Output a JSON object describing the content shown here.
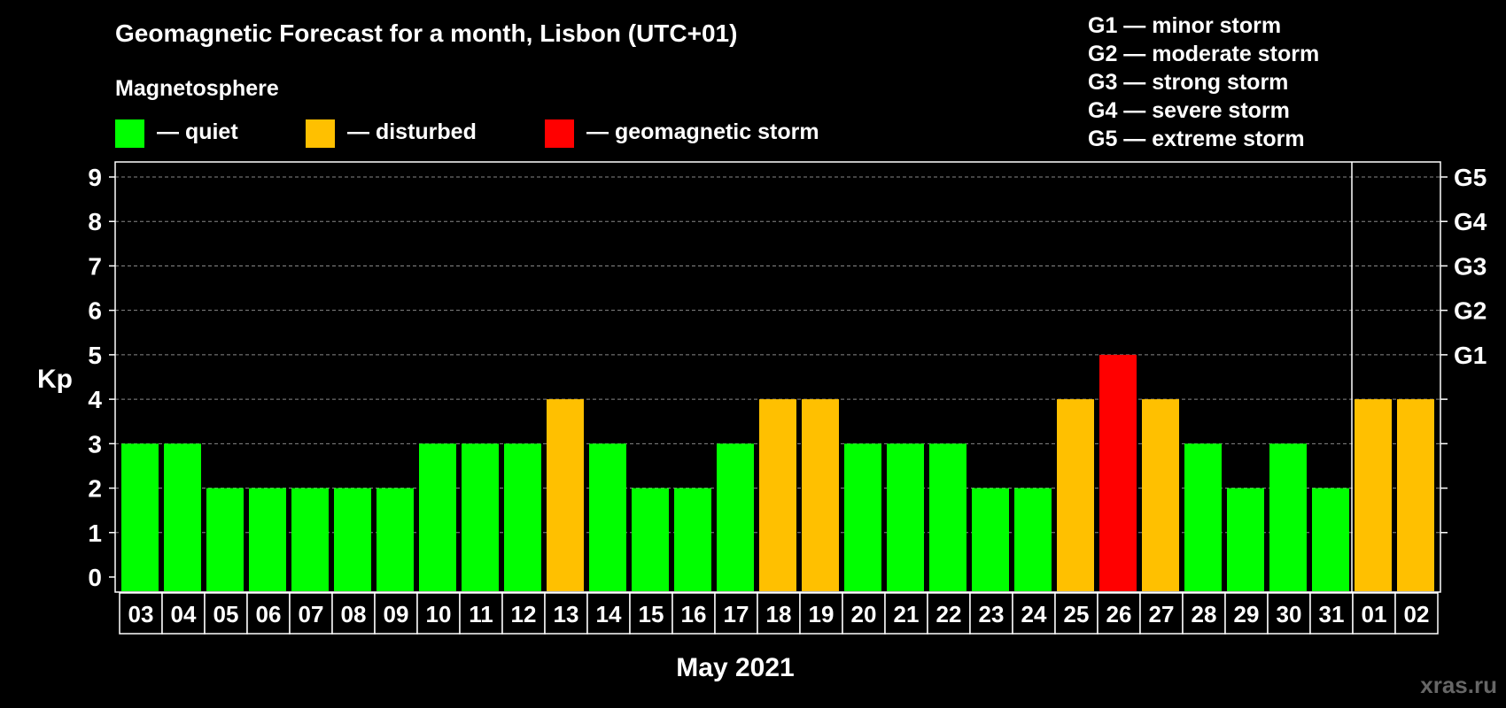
{
  "chart_data": {
    "type": "bar",
    "title": "Geomagnetic Forecast for a month, Lisbon (UTC+01)",
    "legend_title": "Magnetosphere",
    "legend": [
      {
        "key": "quiet",
        "label": "— quiet",
        "color": "#00ff00"
      },
      {
        "key": "disturbed",
        "label": "— disturbed",
        "color": "#ffc000"
      },
      {
        "key": "storm",
        "label": "— geomagnetic storm",
        "color": "#ff0000"
      }
    ],
    "storm_scale": [
      "G1 — minor storm",
      "G2 — moderate storm",
      "G3 — strong storm",
      "G4 — severe storm",
      "G5 — extreme storm"
    ],
    "ylabel": "Kp",
    "ylim": [
      0,
      9
    ],
    "y_ticks": [
      "0",
      "1",
      "2",
      "3",
      "4",
      "5",
      "6",
      "7",
      "8",
      "9"
    ],
    "right_ticks": [
      {
        "kp": 5,
        "label": "G1"
      },
      {
        "kp": 6,
        "label": "G2"
      },
      {
        "kp": 7,
        "label": "G3"
      },
      {
        "kp": 8,
        "label": "G4"
      },
      {
        "kp": 9,
        "label": "G5"
      }
    ],
    "xlabel": "May 2021",
    "categories": [
      "03",
      "04",
      "05",
      "06",
      "07",
      "08",
      "09",
      "10",
      "11",
      "12",
      "13",
      "14",
      "15",
      "16",
      "17",
      "18",
      "19",
      "20",
      "21",
      "22",
      "23",
      "24",
      "25",
      "26",
      "27",
      "28",
      "29",
      "30",
      "31",
      "01",
      "02"
    ],
    "values": [
      3,
      3,
      2,
      2,
      2,
      2,
      2,
      3,
      3,
      3,
      4,
      3,
      2,
      2,
      3,
      4,
      4,
      3,
      3,
      3,
      2,
      2,
      4,
      5,
      4,
      3,
      2,
      3,
      2,
      4,
      4
    ],
    "month_separator_after": "31",
    "grid": "dashed horizontal at each Kp level",
    "colors": {
      "background": "#000000",
      "axis": "#ffffff",
      "grid": "#888888"
    }
  },
  "watermark": "xras.ru"
}
